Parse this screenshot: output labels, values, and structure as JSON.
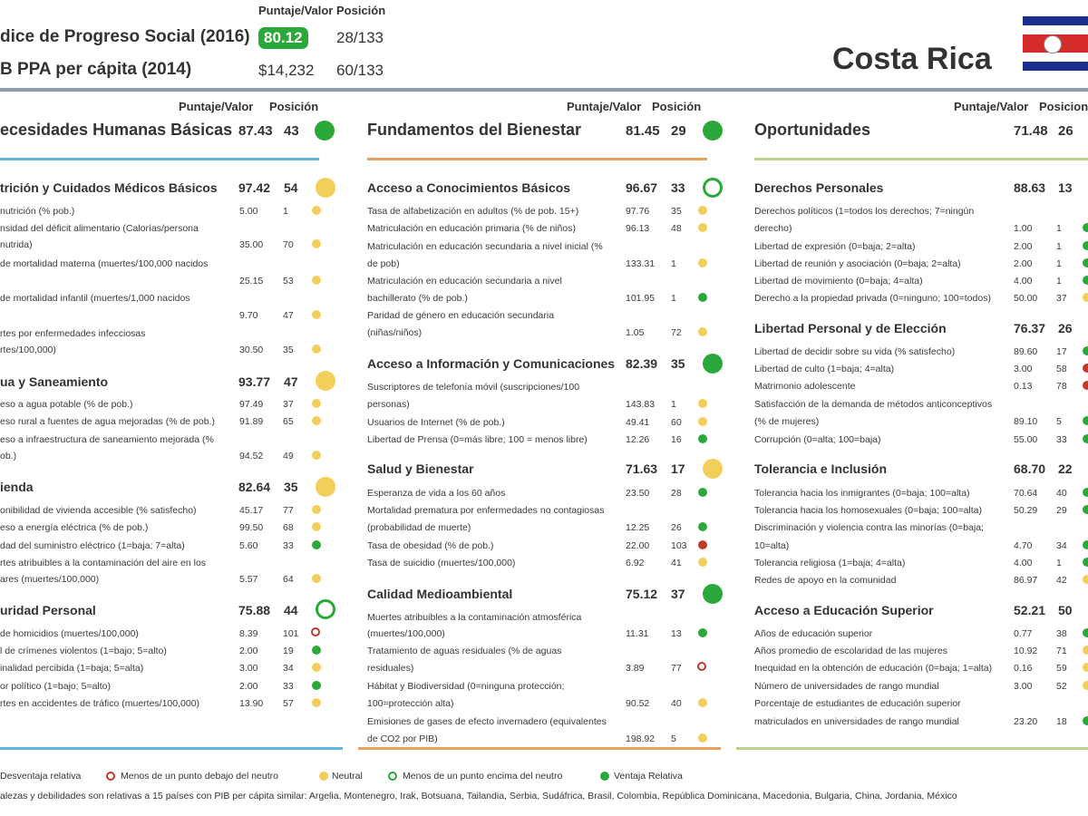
{
  "header": {
    "col_score": "Puntaje/Valor",
    "col_rank": "Posición",
    "row1": {
      "label": "dice de Progreso Social (2016)",
      "score": "80.12",
      "rank": "28/133"
    },
    "row2": {
      "label": "B PPA per cápita (2014)",
      "score": "$14,232",
      "rank": "60/133"
    },
    "country": "Costa Rica"
  },
  "colors": {
    "green": "#2aa83a",
    "yellow": "#f2cf5a",
    "red": "#c0392b",
    "rule_blue": "#5fb7d9",
    "rule_orange": "#e8a25c",
    "rule_lime": "#b7d48a"
  },
  "columns": {
    "c1": {
      "score_header": "Puntaje/Valor",
      "rank_header": "Posición",
      "title": "ecesidades Humanas Básicas",
      "score": "87.43",
      "rank": "43",
      "sections": [
        {
          "title": "trición y Cuidados Médicos Básicos",
          "score": "97.42",
          "rank": "54",
          "rows": [
            {
              "l1": "nutrición (% pob.)",
              "v": "5.00",
              "r": "1"
            },
            {
              "l1": "nsidad del déficit alimentario (Calorías/persona",
              "l2": "nutrida)",
              "v": "35.00",
              "r": "70"
            },
            {
              "l1": "de mortalidad materna (muertes/100,000 nacidos",
              "l2": "",
              "v": "25.15",
              "r": "53"
            },
            {
              "l1": "de mortalidad infantil (muertes/1,000 nacidos",
              "l2": "",
              "v": "9.70",
              "r": "47"
            },
            {
              "l1": "rtes por enfermedades infecciosas",
              "l2": "rtes/100,000)",
              "v": "30.50",
              "r": "35"
            }
          ]
        },
        {
          "title": "ua y Saneamiento",
          "score": "93.77",
          "rank": "47",
          "rows": [
            {
              "l1": "eso a agua potable (% de pob.)",
              "v": "97.49",
              "r": "37"
            },
            {
              "l1": "eso rural a fuentes de agua mejoradas (% de pob.)",
              "v": "91.89",
              "r": "65"
            },
            {
              "l1": "eso a infraestructura de saneamiento mejorada (%",
              "l2": "ob.)",
              "v": "94.52",
              "r": "49"
            }
          ]
        },
        {
          "title": "ienda",
          "score": "82.64",
          "rank": "35",
          "rows": [
            {
              "l1": "onibilidad de vivienda accesible (% satisfecho)",
              "v": "45.17",
              "r": "77"
            },
            {
              "l1": "eso a energía eléctrica (% de pob.)",
              "v": "99.50",
              "r": "68"
            },
            {
              "l1": "dad del suministro eléctrico (1=baja; 7=alta)",
              "v": "5.60",
              "r": "33"
            },
            {
              "l1": "rtes atribuibles a la contaminación del aire en los",
              "l2": "ares (muertes/100,000)",
              "v": "5.57",
              "r": "64"
            }
          ]
        },
        {
          "title": "uridad Personal",
          "score": "75.88",
          "rank": "44",
          "rows": [
            {
              "l1": "de homicidios (muertes/100,000)",
              "v": "8.39",
              "r": "101"
            },
            {
              "l1": "l de crímenes violentos (1=bajo; 5=alto)",
              "v": "2.00",
              "r": "19"
            },
            {
              "l1": "inalidad percibida (1=baja; 5=alta)",
              "v": "3.00",
              "r": "34"
            },
            {
              "l1": "or político (1=bajo; 5=alto)",
              "v": "2.00",
              "r": "33"
            },
            {
              "l1": "rtes en accidentes de tráfico (muertes/100,000)",
              "v": "13.90",
              "r": "57"
            }
          ]
        }
      ]
    },
    "c2": {
      "score_header": "Puntaje/Valor",
      "rank_header": "Posición",
      "title": "Fundamentos del Bienestar",
      "score": "81.45",
      "rank": "29",
      "sections": [
        {
          "title": "Acceso a Conocimientos Básicos",
          "score": "96.67",
          "rank": "33",
          "rows": [
            {
              "l1": "Tasa de alfabetización en adultos (% de pob. 15+)",
              "v": "97.76",
              "r": "35"
            },
            {
              "l1": "Matriculación en educación primaria (% de niños)",
              "v": "96.13",
              "r": "48"
            },
            {
              "l1": "Matriculación en educación secundaria a nivel inicial (%",
              "l2": "de pob)",
              "v": "133.31",
              "r": "1"
            },
            {
              "l1": "Matriculación en educación secundaria a nivel",
              "l2": "bachillerato (% de pob.)",
              "v": "101.95",
              "r": "1"
            },
            {
              "l1": "Paridad de género en educación secundaria",
              "l2": "(niñas/niños)",
              "v": "1.05",
              "r": "72"
            }
          ]
        },
        {
          "title": "Acceso a Información y Comunicaciones",
          "score": "82.39",
          "rank": "35",
          "rows": [
            {
              "l1": "Suscriptores de telefonía móvil (suscripciones/100",
              "l2": "personas)",
              "v": "143.83",
              "r": "1"
            },
            {
              "l1": "Usuarios de Internet (% de pob.)",
              "v": "49.41",
              "r": "60"
            },
            {
              "l1": "Libertad de Prensa (0=más libre; 100 = menos libre)",
              "v": "12.26",
              "r": "16"
            }
          ]
        },
        {
          "title": "Salud y Bienestar",
          "score": "71.63",
          "rank": "17",
          "rows": [
            {
              "l1": "Esperanza de vida a los 60 años",
              "v": "23.50",
              "r": "28"
            },
            {
              "l1": "Mortalidad prematura por enfermedades no contagiosas",
              "l2": "(probabilidad de muerte)",
              "v": "12.25",
              "r": "26"
            },
            {
              "l1": "Tasa de obesidad (% de pob.)",
              "v": "22.00",
              "r": "103"
            },
            {
              "l1": "Tasa de suicidio (muertes/100,000)",
              "v": "6.92",
              "r": "41"
            }
          ]
        },
        {
          "title": "Calidad Medioambiental",
          "score": "75.12",
          "rank": "37",
          "rows": [
            {
              "l1": "Muertes atribuibles a la contaminación atmosférica",
              "l2": "(muertes/100,000)",
              "v": "11.31",
              "r": "13"
            },
            {
              "l1": "Tratamiento de aguas residuales (% de aguas",
              "l2": "residuales)",
              "v": "3.89",
              "r": "77"
            },
            {
              "l1": "Hábitat y Biodiversidad (0=ninguna protección;",
              "l2": "100=protección alta)",
              "v": "90.52",
              "r": "40"
            },
            {
              "l1": "Emisiones de gases de efecto invernadero (equivalentes",
              "l2": "de CO2 por PIB)",
              "v": "198.92",
              "r": "5"
            }
          ]
        }
      ]
    },
    "c3": {
      "score_header": "Puntaje/Valor",
      "rank_header": "Posicion",
      "title": "Oportunidades",
      "score": "71.48",
      "rank": "26",
      "sections": [
        {
          "title": "Derechos Personales",
          "score": "88.63",
          "rank": "13",
          "rows": [
            {
              "l1": "Derechos políticos (1=todos los derechos; 7=ningún",
              "l2": "derecho)",
              "v": "1.00",
              "r": "1"
            },
            {
              "l1": "Libertad de expresión (0=baja; 2=alta)",
              "v": "2.00",
              "r": "1"
            },
            {
              "l1": "Libertad de reunión y asociación (0=baja; 2=alta)",
              "v": "2.00",
              "r": "1"
            },
            {
              "l1": "Libertad de movimiento (0=baja; 4=alta)",
              "v": "4.00",
              "r": "1"
            },
            {
              "l1": "Derecho a la propiedad privada (0=ninguno; 100=todos)",
              "v": "50.00",
              "r": "37"
            }
          ]
        },
        {
          "title": "Libertad Personal y de Elección",
          "score": "76.37",
          "rank": "26",
          "rows": [
            {
              "l1": "Libertad de decidir sobre su vida (% satisfecho)",
              "v": "89.60",
              "r": "17"
            },
            {
              "l1": "Libertad de culto (1=baja; 4=alta)",
              "v": "3.00",
              "r": "58"
            },
            {
              "l1": "Matrimonio adolescente",
              "v": "0.13",
              "r": "78"
            },
            {
              "l1": "Satisfacción de la demanda de métodos anticonceptivos",
              "l2": "(% de mujeres)",
              "v": "89.10",
              "r": "5"
            },
            {
              "l1": "Corrupción (0=alta; 100=baja)",
              "v": "55.00",
              "r": "33"
            }
          ]
        },
        {
          "title": "Tolerancia e Inclusión",
          "score": "68.70",
          "rank": "22",
          "rows": [
            {
              "l1": "Tolerancia hacia los inmigrantes (0=baja; 100=alta)",
              "v": "70.64",
              "r": "40"
            },
            {
              "l1": "Tolerancia hacia los homosexuales (0=baja; 100=alta)",
              "v": "50.29",
              "r": "29"
            },
            {
              "l1": "Discriminación y violencia contra las minorías (0=baja;",
              "l2": "10=alta)",
              "v": "4.70",
              "r": "34"
            },
            {
              "l1": "Tolerancia religiosa (1=baja; 4=alta)",
              "v": "4.00",
              "r": "1"
            },
            {
              "l1": "Redes de apoyo en la comunidad",
              "v": "86.97",
              "r": "42"
            }
          ]
        },
        {
          "title": "Acceso a Educación Superior",
          "score": "52.21",
          "rank": "50",
          "rows": [
            {
              "l1": "Años de educación superior",
              "v": "0.77",
              "r": "38"
            },
            {
              "l1": "Años promedio de escolaridad de las mujeres",
              "v": "10.92",
              "r": "71"
            },
            {
              "l1": "Inequidad en la obtención de educación (0=baja; 1=alta)",
              "v": "0.16",
              "r": "59"
            },
            {
              "l1": "Número de universidades de rango mundial",
              "v": "3.00",
              "r": "52"
            },
            {
              "l1": "Porcentaje de estudiantes de educación superior",
              "l2": "matriculados en universidades de rango mundial",
              "v": "23.20",
              "r": "18"
            }
          ]
        }
      ]
    }
  },
  "legend": {
    "l1": "Desventaja relativa",
    "l2": "Menos de un punto debajo del neutro",
    "l3": "Neutral",
    "l4": "Menos de un punto encima del neutro",
    "l5": "Ventaja Relativa"
  },
  "footnote": "alezas y debilidades son relativas a 15 países con PIB per cápita similar: Argelia, Montenegro, Irak, Botsuana, Tailandia, Serbia, Sudáfrica, Brasil, Colombia, República Dominicana, Macedonia, Bulgaria, China, Jordania, México"
}
